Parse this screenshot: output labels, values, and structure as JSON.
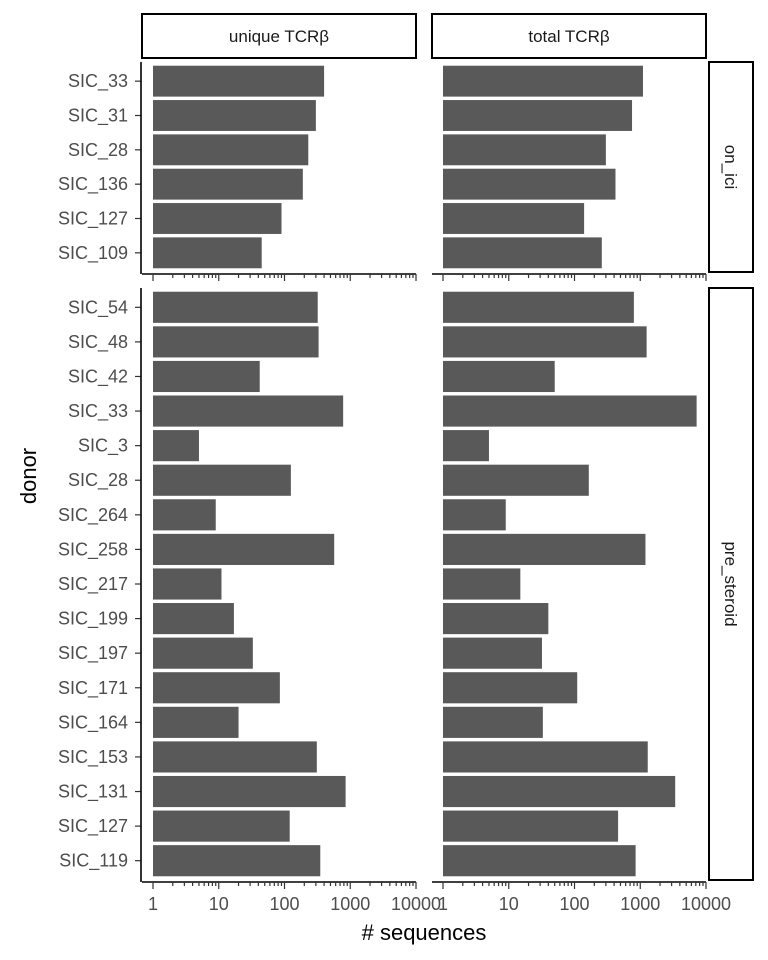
{
  "chart_data": {
    "type": "bar",
    "orientation": "horizontal",
    "x_scale": "log10",
    "xlim": [
      1,
      10000
    ],
    "xlabel": "# sequences",
    "ylabel": "donor",
    "x_tick_labels": [
      "1",
      "10",
      "100",
      "1000",
      "10000"
    ],
    "x_tick_values": [
      1,
      10,
      100,
      1000,
      10000
    ],
    "bar_color": "#595959",
    "column_facets": [
      "unique TCRβ",
      "total TCRβ"
    ],
    "row_facets": [
      {
        "name": "on_ici",
        "donors": [
          "SIC_33",
          "SIC_31",
          "SIC_28",
          "SIC_136",
          "SIC_127",
          "SIC_109"
        ],
        "series": [
          {
            "facet": "unique TCRβ",
            "values": [
              400,
              300,
              230,
              190,
              90,
              45
            ]
          },
          {
            "facet": "total TCRβ",
            "values": [
              1100,
              750,
              300,
              420,
              140,
              260
            ]
          }
        ]
      },
      {
        "name": "pre_steroid",
        "donors": [
          "SIC_54",
          "SIC_48",
          "SIC_42",
          "SIC_33",
          "SIC_3",
          "SIC_28",
          "SIC_264",
          "SIC_258",
          "SIC_217",
          "SIC_199",
          "SIC_197",
          "SIC_171",
          "SIC_164",
          "SIC_153",
          "SIC_131",
          "SIC_127",
          "SIC_119"
        ],
        "series": [
          {
            "facet": "unique TCRβ",
            "values": [
              320,
              330,
              42,
              780,
              5,
              125,
              9,
              570,
              11,
              17,
              33,
              85,
              20,
              310,
              850,
              120,
              350
            ]
          },
          {
            "facet": "total TCRβ",
            "values": [
              800,
              1250,
              50,
              7200,
              5,
              165,
              9,
              1200,
              15,
              40,
              32,
              110,
              33,
              1300,
              3400,
              460,
              850
            ]
          }
        ]
      }
    ]
  }
}
